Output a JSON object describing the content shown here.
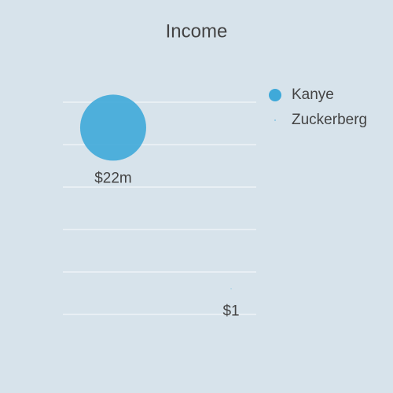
{
  "chart_data": {
    "type": "bubble",
    "title": "Income",
    "xlim": [
      0,
      5
    ],
    "ylim": [
      0,
      5
    ],
    "yticks": [
      0,
      1,
      2,
      3,
      4,
      5
    ],
    "grid": true,
    "series": [
      {
        "name": "Kanye",
        "color": "#3fa9d9",
        "x": [
          1.3
        ],
        "values": [
          4.4
        ],
        "sizes": [
          22000000
        ],
        "value_labels": [
          "$22m"
        ]
      },
      {
        "name": "Zuckerberg",
        "color": "#3fa9d9",
        "x": [
          4.35
        ],
        "values": [
          0.6
        ],
        "sizes": [
          1
        ],
        "value_labels": [
          "$1"
        ]
      }
    ]
  }
}
